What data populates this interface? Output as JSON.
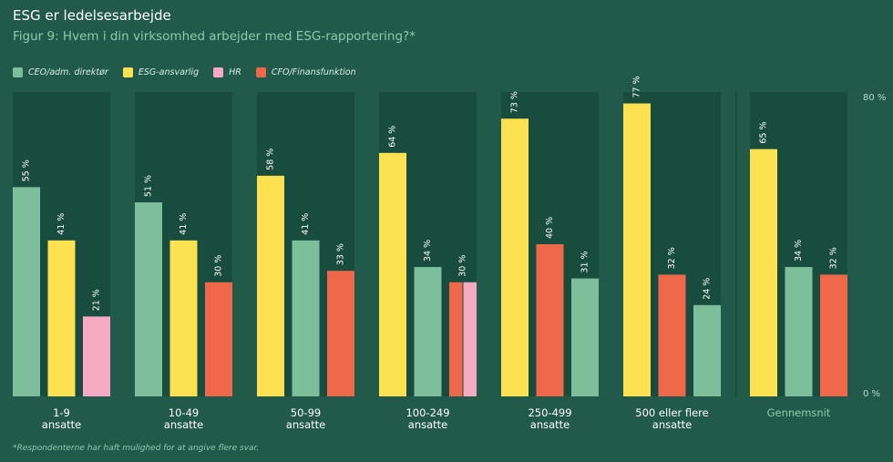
{
  "title": "ESG er ledelsesarbejde",
  "subtitle": "Figur 9: Hvem i din virksomhed arbejder med ESG-rapportering?*",
  "footnote": "*Respondenterne har haft mulighed for at angive flere svar.",
  "chart_data": {
    "type": "bar",
    "title": "Figur 9: Hvem i din virksomhed arbejder med ESG-rapportering?*",
    "ylim": [
      0,
      80
    ],
    "ytick_labels": [
      "80 %",
      "0 %"
    ],
    "series": [
      {
        "name": "CEO/adm. direktør",
        "color": "#7dbf9b"
      },
      {
        "name": "ESG-ansvarlig",
        "color": "#fee150"
      },
      {
        "name": "HR",
        "color": "#f6a9c2"
      },
      {
        "name": "CFO/Finansfunktion",
        "color": "#f0684a"
      }
    ],
    "groups": [
      {
        "label": [
          "1-9",
          "ansatte"
        ],
        "bars": [
          {
            "series": 0,
            "value": 55,
            "label": "55 %"
          },
          {
            "series": 1,
            "value": 41,
            "label": "41 %"
          },
          {
            "series": 2,
            "value": 21,
            "label": "21 %"
          }
        ]
      },
      {
        "label": [
          "10-49",
          "ansatte"
        ],
        "bars": [
          {
            "series": 0,
            "value": 51,
            "label": "51 %"
          },
          {
            "series": 1,
            "value": 41,
            "label": "41 %"
          },
          {
            "series": 3,
            "value": 30,
            "label": "30 %"
          }
        ]
      },
      {
        "label": [
          "50-99",
          "ansatte"
        ],
        "bars": [
          {
            "series": 1,
            "value": 58,
            "label": "58 %"
          },
          {
            "series": 0,
            "value": 41,
            "label": "41 %"
          },
          {
            "series": 3,
            "value": 33,
            "label": "33 %"
          }
        ]
      },
      {
        "label": [
          "100-249",
          "ansatte"
        ],
        "bars": [
          {
            "series": 1,
            "value": 64,
            "label": "64 %"
          },
          {
            "series": 0,
            "value": 34,
            "label": "34 %"
          },
          {
            "series": 3,
            "value": 30,
            "label": "30 %",
            "split_with": 2
          }
        ]
      },
      {
        "label": [
          "250-499",
          "ansatte"
        ],
        "bars": [
          {
            "series": 1,
            "value": 73,
            "label": "73 %"
          },
          {
            "series": 3,
            "value": 40,
            "label": "40 %"
          },
          {
            "series": 0,
            "value": 31,
            "label": "31 %"
          }
        ]
      },
      {
        "label": [
          "500 eller flere",
          "ansatte"
        ],
        "bars": [
          {
            "series": 1,
            "value": 77,
            "label": "77 %"
          },
          {
            "series": 3,
            "value": 32,
            "label": "32 %"
          },
          {
            "series": 0,
            "value": 24,
            "label": "24 %"
          }
        ]
      },
      {
        "label": [
          "Gennemsnit"
        ],
        "average": true,
        "bars": [
          {
            "series": 1,
            "value": 65,
            "label": "65 %"
          },
          {
            "series": 0,
            "value": 34,
            "label": "34 %"
          },
          {
            "series": 3,
            "value": 32,
            "label": "32 %"
          }
        ]
      }
    ]
  }
}
